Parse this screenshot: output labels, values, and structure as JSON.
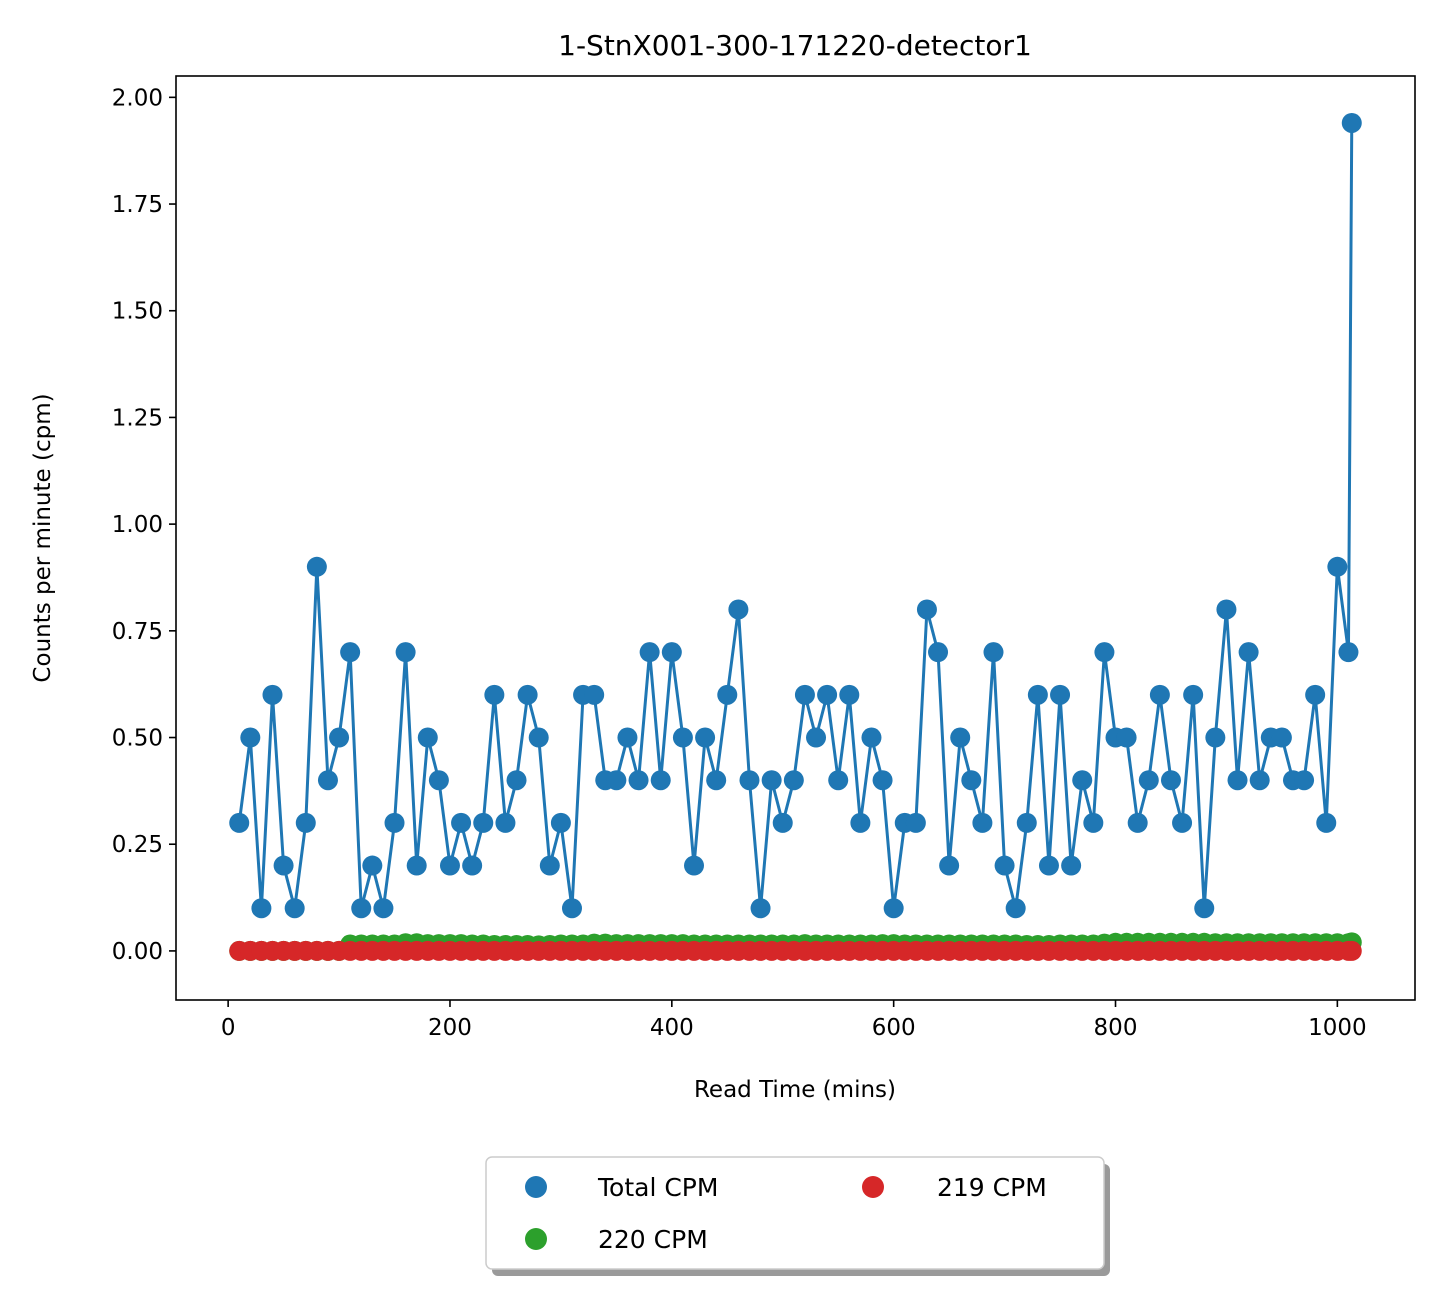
{
  "chart_data": {
    "type": "line",
    "title": "1-StnX001-300-171220-detector1",
    "xlabel": "Read Time (mins)",
    "ylabel": "Counts per minute (cpm)",
    "xlim": [
      -47,
      1070
    ],
    "ylim": [
      -0.115,
      2.05
    ],
    "xticks": [
      0,
      200,
      400,
      600,
      800,
      1000
    ],
    "xtick_labels": [
      "0",
      "200",
      "400",
      "600",
      "800",
      "1000"
    ],
    "yticks": [
      0.0,
      0.25,
      0.5,
      0.75,
      1.0,
      1.25,
      1.5,
      1.75,
      2.0
    ],
    "ytick_labels": [
      "0.00",
      "0.25",
      "0.50",
      "0.75",
      "1.00",
      "1.25",
      "1.50",
      "1.75",
      "2.00"
    ],
    "grid": false,
    "legend_placement": "bottom-center below plot, 2 columns, shadowed",
    "x": [
      10,
      20,
      30,
      40,
      50,
      60,
      70,
      80,
      90,
      100,
      110,
      120,
      130,
      140,
      150,
      160,
      170,
      180,
      190,
      200,
      210,
      220,
      230,
      240,
      250,
      260,
      270,
      280,
      290,
      300,
      310,
      320,
      330,
      340,
      350,
      360,
      370,
      380,
      390,
      400,
      410,
      420,
      430,
      440,
      450,
      460,
      470,
      480,
      490,
      500,
      510,
      520,
      530,
      540,
      550,
      560,
      570,
      580,
      590,
      600,
      610,
      620,
      630,
      640,
      650,
      660,
      670,
      680,
      690,
      700,
      710,
      720,
      730,
      740,
      750,
      760,
      770,
      780,
      790,
      800,
      810,
      820,
      830,
      840,
      850,
      860,
      870,
      880,
      890,
      900,
      910,
      920,
      930,
      940,
      950,
      960,
      970,
      980,
      990,
      1000,
      1010,
      1013
    ],
    "series": [
      {
        "name": "Total CPM",
        "color": "#1f77b4",
        "values": [
          0.3,
          0.5,
          0.1,
          0.6,
          0.2,
          0.1,
          0.3,
          0.9,
          0.4,
          0.5,
          0.7,
          0.1,
          0.2,
          0.1,
          0.3,
          0.7,
          0.2,
          0.5,
          0.4,
          0.2,
          0.3,
          0.2,
          0.3,
          0.6,
          0.3,
          0.4,
          0.6,
          0.5,
          0.2,
          0.3,
          0.1,
          0.6,
          0.6,
          0.4,
          0.4,
          0.5,
          0.4,
          0.7,
          0.4,
          0.7,
          0.5,
          0.2,
          0.5,
          0.4,
          0.6,
          0.8,
          0.4,
          0.1,
          0.4,
          0.3,
          0.4,
          0.6,
          0.5,
          0.6,
          0.4,
          0.6,
          0.3,
          0.5,
          0.4,
          0.1,
          0.3,
          0.3,
          0.8,
          0.7,
          0.2,
          0.5,
          0.4,
          0.3,
          0.7,
          0.2,
          0.1,
          0.3,
          0.6,
          0.2,
          0.6,
          0.2,
          0.4,
          0.3,
          0.7,
          0.5,
          0.5,
          0.3,
          0.4,
          0.6,
          0.4,
          0.3,
          0.6,
          0.1,
          0.5,
          0.8,
          0.4,
          0.7,
          0.4,
          0.5,
          0.5,
          0.4,
          0.4,
          0.6,
          0.3,
          0.9,
          0.7,
          1.94
        ]
      },
      {
        "name": "220 CPM",
        "color": "#2ca02c",
        "values": [
          0.0,
          0.0,
          0.0,
          0.0,
          0.0,
          0.0,
          0.0,
          0.0,
          0.0,
          0.0,
          0.015,
          0.015,
          0.015,
          0.015,
          0.015,
          0.018,
          0.018,
          0.016,
          0.016,
          0.016,
          0.016,
          0.015,
          0.015,
          0.014,
          0.014,
          0.014,
          0.014,
          0.013,
          0.014,
          0.015,
          0.015,
          0.015,
          0.017,
          0.017,
          0.016,
          0.016,
          0.016,
          0.016,
          0.016,
          0.016,
          0.016,
          0.015,
          0.015,
          0.015,
          0.015,
          0.015,
          0.015,
          0.015,
          0.015,
          0.015,
          0.015,
          0.016,
          0.015,
          0.015,
          0.015,
          0.015,
          0.015,
          0.015,
          0.016,
          0.016,
          0.015,
          0.015,
          0.015,
          0.015,
          0.015,
          0.015,
          0.015,
          0.015,
          0.015,
          0.015,
          0.015,
          0.014,
          0.014,
          0.014,
          0.015,
          0.015,
          0.015,
          0.015,
          0.017,
          0.019,
          0.019,
          0.019,
          0.019,
          0.019,
          0.019,
          0.019,
          0.019,
          0.019,
          0.018,
          0.018,
          0.018,
          0.018,
          0.018,
          0.018,
          0.018,
          0.018,
          0.018,
          0.018,
          0.018,
          0.018,
          0.018,
          0.02
        ]
      },
      {
        "name": "219 CPM",
        "color": "#d62728",
        "values": [
          0.0,
          0.0,
          0.0,
          0.0,
          0.0,
          0.0,
          0.0,
          0.0,
          0.0,
          0.0,
          0.0,
          0.0,
          0.0,
          0.0,
          0.0,
          0.0,
          0.0,
          0.0,
          0.0,
          0.0,
          0.0,
          0.0,
          0.0,
          0.0,
          0.0,
          0.0,
          0.0,
          0.0,
          0.0,
          0.0,
          0.0,
          0.0,
          0.0,
          0.0,
          0.0,
          0.0,
          0.0,
          0.0,
          0.0,
          0.0,
          0.0,
          0.0,
          0.0,
          0.0,
          0.0,
          0.0,
          0.0,
          0.0,
          0.0,
          0.0,
          0.0,
          0.0,
          0.0,
          0.0,
          0.0,
          0.0,
          0.0,
          0.0,
          0.0,
          0.0,
          0.0,
          0.0,
          0.0,
          0.0,
          0.0,
          0.0,
          0.0,
          0.0,
          0.0,
          0.0,
          0.0,
          0.0,
          0.0,
          0.0,
          0.0,
          0.0,
          0.0,
          0.0,
          0.0,
          0.0,
          0.0,
          0.0,
          0.0,
          0.0,
          0.0,
          0.0,
          0.0,
          0.0,
          0.0,
          0.0,
          0.0,
          0.0,
          0.0,
          0.0,
          0.0,
          0.0,
          0.0,
          0.0,
          0.0,
          0.0,
          0.0,
          0.0
        ]
      }
    ],
    "legend": {
      "entries": [
        "Total CPM",
        "220 CPM",
        "219 CPM"
      ]
    }
  }
}
